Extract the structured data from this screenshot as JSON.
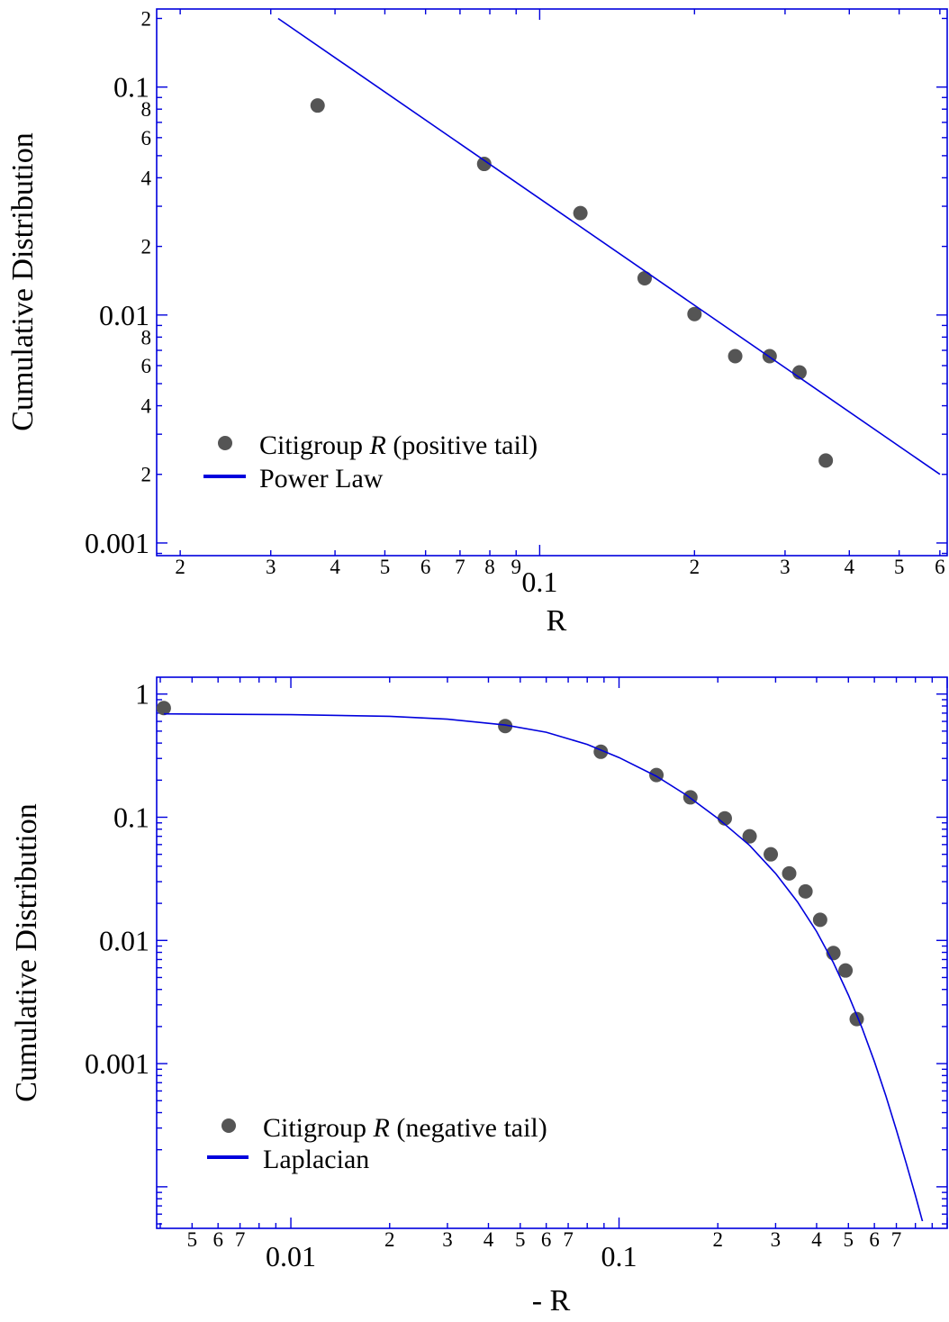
{
  "chart_data": [
    {
      "type": "scatter",
      "ylabel": "Cumulative Distribution",
      "xlabel": "R",
      "xscale": "log",
      "yscale": "log",
      "xlim": [
        0.018,
        0.62
      ],
      "ylim": [
        0.00088,
        0.22
      ],
      "x_major_labels": [
        {
          "v": 0.1,
          "t": "0.1"
        }
      ],
      "x_minor_labels": [
        {
          "v": 0.02,
          "t": "2"
        },
        {
          "v": 0.03,
          "t": "3"
        },
        {
          "v": 0.04,
          "t": "4"
        },
        {
          "v": 0.05,
          "t": "5"
        },
        {
          "v": 0.06,
          "t": "6"
        },
        {
          "v": 0.07,
          "t": "7"
        },
        {
          "v": 0.08,
          "t": "8"
        },
        {
          "v": 0.09,
          "t": "9"
        },
        {
          "v": 0.2,
          "t": "2"
        },
        {
          "v": 0.3,
          "t": "3"
        },
        {
          "v": 0.4,
          "t": "4"
        },
        {
          "v": 0.5,
          "t": "5"
        },
        {
          "v": 0.6,
          "t": "6"
        }
      ],
      "y_major_labels": [
        {
          "v": 0.1,
          "t": "0.1"
        },
        {
          "v": 0.01,
          "t": "0.01"
        },
        {
          "v": 0.001,
          "t": "0.001"
        }
      ],
      "y_minor_labels": [
        {
          "v": 0.2,
          "t": "2"
        },
        {
          "v": 0.08,
          "t": "8"
        },
        {
          "v": 0.06,
          "t": "6"
        },
        {
          "v": 0.04,
          "t": "4"
        },
        {
          "v": 0.02,
          "t": "2"
        },
        {
          "v": 0.008,
          "t": "8"
        },
        {
          "v": 0.006,
          "t": "6"
        },
        {
          "v": 0.004,
          "t": "4"
        },
        {
          "v": 0.002,
          "t": "2"
        }
      ],
      "series": [
        {
          "name": "Citigroup R (positive tail)",
          "kind": "points",
          "x": [
            0.037,
            0.078,
            0.12,
            0.16,
            0.2,
            0.24,
            0.28,
            0.32,
            0.36
          ],
          "y": [
            0.083,
            0.046,
            0.028,
            0.0145,
            0.0101,
            0.0066,
            0.0066,
            0.0056,
            0.0023
          ]
        },
        {
          "name": "Power Law",
          "kind": "line",
          "x": [
            0.031,
            0.6
          ],
          "y": [
            0.2,
            0.002
          ]
        }
      ],
      "legend": [
        {
          "kind": "marker",
          "prefix": "Citigroup ",
          "italic": "R",
          "suffix": " (positive tail)"
        },
        {
          "kind": "line",
          "prefix": "Power Law",
          "italic": "",
          "suffix": ""
        }
      ],
      "legend_position": "bottom-left",
      "grid": false
    },
    {
      "type": "scatter",
      "ylabel": "Cumulative Distribution",
      "xlabel": "- R",
      "xscale": "log",
      "yscale": "log",
      "xlim": [
        0.0039,
        1.0
      ],
      "ylim": [
        4.6e-05,
        1.37
      ],
      "x_major_labels": [
        {
          "v": 0.01,
          "t": "0.01"
        },
        {
          "v": 0.1,
          "t": "0.1"
        }
      ],
      "x_minor_labels": [
        {
          "v": 0.005,
          "t": "5"
        },
        {
          "v": 0.006,
          "t": "6"
        },
        {
          "v": 0.007,
          "t": "7"
        },
        {
          "v": 0.02,
          "t": "2"
        },
        {
          "v": 0.03,
          "t": "3"
        },
        {
          "v": 0.04,
          "t": "4"
        },
        {
          "v": 0.05,
          "t": "5"
        },
        {
          "v": 0.06,
          "t": "6"
        },
        {
          "v": 0.07,
          "t": "7"
        },
        {
          "v": 0.2,
          "t": "2"
        },
        {
          "v": 0.3,
          "t": "3"
        },
        {
          "v": 0.4,
          "t": "4"
        },
        {
          "v": 0.5,
          "t": "5"
        },
        {
          "v": 0.6,
          "t": "6"
        },
        {
          "v": 0.7,
          "t": "7"
        }
      ],
      "y_major_labels": [
        {
          "v": 1,
          "t": "1"
        },
        {
          "v": 0.1,
          "t": "0.1"
        },
        {
          "v": 0.01,
          "t": "0.01"
        },
        {
          "v": 0.001,
          "t": "0.001"
        }
      ],
      "y_minor_labels": [],
      "series": [
        {
          "name": "Citigroup R (negative tail)",
          "kind": "points",
          "x": [
            0.0041,
            0.045,
            0.088,
            0.13,
            0.165,
            0.21,
            0.25,
            0.29,
            0.33,
            0.37,
            0.41,
            0.45,
            0.49,
            0.53
          ],
          "y": [
            0.77,
            0.55,
            0.34,
            0.22,
            0.145,
            0.098,
            0.07,
            0.05,
            0.035,
            0.025,
            0.0147,
            0.0079,
            0.0057,
            0.0023
          ]
        },
        {
          "name": "Laplacian",
          "kind": "line",
          "x": [
            0.0041,
            0.01,
            0.02,
            0.03,
            0.045,
            0.06,
            0.08,
            0.1,
            0.13,
            0.16,
            0.2,
            0.25,
            0.3,
            0.35,
            0.4,
            0.45,
            0.5,
            0.55,
            0.6,
            0.65,
            0.7,
            0.75,
            0.8,
            0.85,
            0.9
          ],
          "y": [
            0.69,
            0.68,
            0.66,
            0.625,
            0.56,
            0.49,
            0.39,
            0.305,
            0.215,
            0.152,
            0.098,
            0.059,
            0.035,
            0.0205,
            0.0118,
            0.0066,
            0.0036,
            0.00195,
            0.00104,
            0.00055,
            0.00029,
            0.000155,
            8.5e-05,
            4.7e-05,
            2.6e-05
          ]
        }
      ],
      "legend": [
        {
          "kind": "marker",
          "prefix": "Citigroup ",
          "italic": "R",
          "suffix": " (negative tail)"
        },
        {
          "kind": "line",
          "prefix": "Laplacian",
          "italic": "",
          "suffix": ""
        }
      ],
      "legend_position": "bottom-left",
      "grid": false
    }
  ]
}
